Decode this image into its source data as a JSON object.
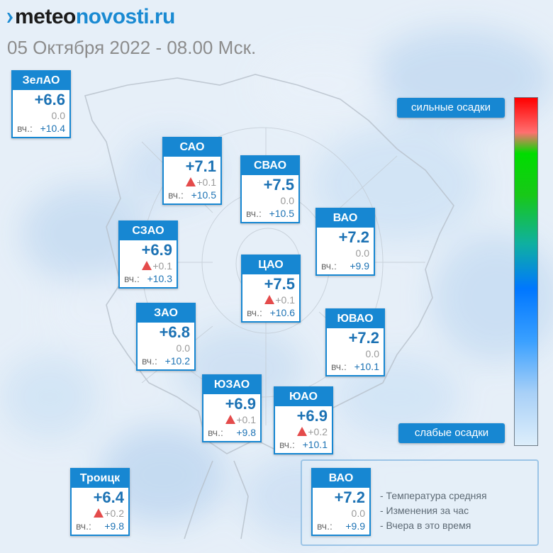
{
  "header": {
    "logo_part1": "meteo",
    "logo_part2": "novosti.ru",
    "date": "05 Октября 2022 - 08.00 Мск."
  },
  "colors": {
    "brand_blue": "#1787d2",
    "temp_blue": "#1c72b4",
    "up_arrow_red": "#e44b4b",
    "logo_dark": "#1b1b1b"
  },
  "districts": [
    {
      "name": "ЗелАО",
      "temp": "+6.6",
      "change": "0.0",
      "change_dir": "none",
      "yesterday_label": "вч.:",
      "yesterday": "+10.4"
    },
    {
      "name": "САО",
      "temp": "+7.1",
      "change": "+0.1",
      "change_dir": "up",
      "yesterday_label": "вч.:",
      "yesterday": "+10.5"
    },
    {
      "name": "СВАО",
      "temp": "+7.5",
      "change": "0.0",
      "change_dir": "none",
      "yesterday_label": "вч.:",
      "yesterday": "+10.5"
    },
    {
      "name": "ВАО",
      "temp": "+7.2",
      "change": "0.0",
      "change_dir": "none",
      "yesterday_label": "вч.:",
      "yesterday": "+9.9"
    },
    {
      "name": "СЗАО",
      "temp": "+6.9",
      "change": "+0.1",
      "change_dir": "up",
      "yesterday_label": "вч.:",
      "yesterday": "+10.3"
    },
    {
      "name": "ЦАО",
      "temp": "+7.5",
      "change": "+0.1",
      "change_dir": "up",
      "yesterday_label": "вч.:",
      "yesterday": "+10.6"
    },
    {
      "name": "ЗАО",
      "temp": "+6.8",
      "change": "0.0",
      "change_dir": "none",
      "yesterday_label": "вч.:",
      "yesterday": "+10.2"
    },
    {
      "name": "ЮВАО",
      "temp": "+7.2",
      "change": "0.0",
      "change_dir": "none",
      "yesterday_label": "вч.:",
      "yesterday": "+10.1"
    },
    {
      "name": "ЮЗАО",
      "temp": "+6.9",
      "change": "+0.1",
      "change_dir": "up",
      "yesterday_label": "вч.:",
      "yesterday": "+9.8"
    },
    {
      "name": "ЮАО",
      "temp": "+6.9",
      "change": "+0.2",
      "change_dir": "up",
      "yesterday_label": "вч.:",
      "yesterday": "+10.1"
    },
    {
      "name": "Троицк",
      "temp": "+6.4",
      "change": "+0.2",
      "change_dir": "up",
      "yesterday_label": "вч.:",
      "yesterday": "+9.8"
    }
  ],
  "precip_scale": {
    "top_label": "сильные осадки",
    "bottom_label": "слабые осадки"
  },
  "legend": {
    "sample_name": "ВАО",
    "sample_temp": "+7.2",
    "sample_change": "0.0",
    "sample_yesterday_label": "вч.:",
    "sample_yesterday": "+9.9",
    "line1": "- Температура средняя",
    "line2": "- Изменения за час",
    "line3": "- Вчера в это время"
  }
}
